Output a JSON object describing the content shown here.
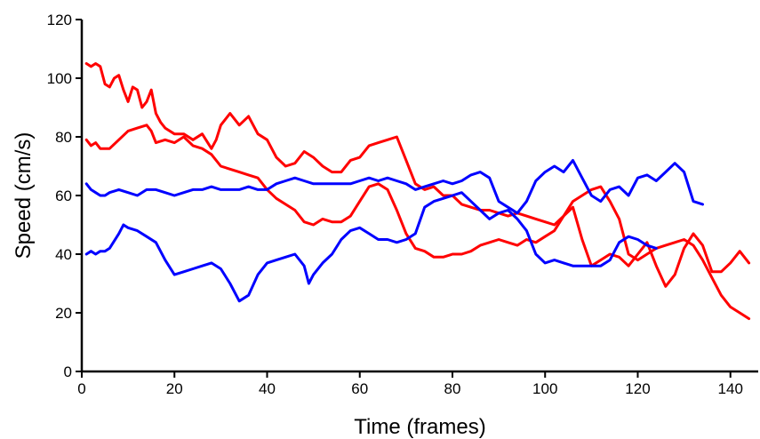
{
  "chart_data": {
    "type": "line",
    "xlabel": "Time (frames)",
    "ylabel": "Speed (cm/s)",
    "xlim": [
      0,
      146
    ],
    "ylim": [
      0,
      120
    ],
    "xticks": [
      0,
      20,
      40,
      60,
      80,
      100,
      120,
      140
    ],
    "yticks": [
      0,
      20,
      40,
      60,
      80,
      100,
      120
    ],
    "xtick_labels": [
      "0",
      "20",
      "40",
      "60",
      "80",
      "100",
      "120",
      "140"
    ],
    "ytick_labels": [
      "0",
      "20",
      "40",
      "60",
      "80",
      "100",
      "120"
    ],
    "grid": false,
    "legend": "none",
    "series": [
      {
        "color": "#ff0000",
        "x": [
          1,
          2,
          3,
          4,
          5,
          6,
          7,
          8,
          9,
          10,
          11,
          12,
          13,
          14,
          15,
          16,
          17,
          18,
          20,
          22,
          24,
          26,
          28,
          29,
          30,
          32,
          34,
          36,
          38,
          40,
          42,
          44,
          46,
          48,
          50,
          52,
          54,
          56,
          58,
          60,
          62,
          64,
          66,
          68,
          70,
          72,
          74,
          76,
          78,
          80,
          82,
          84,
          86,
          88,
          90,
          92,
          94,
          96,
          98,
          100,
          102,
          104,
          106,
          108,
          110,
          112,
          114,
          116,
          118,
          120,
          122,
          124,
          126,
          128,
          130,
          132,
          134,
          136,
          138,
          140,
          142,
          144
        ],
        "y": [
          105,
          104,
          105,
          104,
          98,
          97,
          100,
          101,
          96,
          92,
          97,
          96,
          90,
          92,
          96,
          88,
          85,
          83,
          81,
          81,
          79,
          81,
          76,
          79,
          84,
          88,
          84,
          87,
          81,
          79,
          73,
          70,
          71,
          75,
          73,
          70,
          68,
          68,
          72,
          73,
          77,
          78,
          79,
          80,
          72,
          64,
          62,
          63,
          60,
          60,
          57,
          56,
          55,
          55,
          54,
          53,
          54,
          53,
          52,
          51,
          50,
          53,
          58,
          60,
          62,
          63,
          58,
          52,
          40,
          38,
          40,
          42,
          43,
          44,
          45,
          43,
          38,
          32,
          26,
          22,
          20,
          18
        ],
        "width": 3
      },
      {
        "color": "#ff0000",
        "x": [
          1,
          2,
          3,
          4,
          5,
          6,
          8,
          10,
          12,
          14,
          15,
          16,
          18,
          20,
          22,
          24,
          26,
          28,
          30,
          32,
          34,
          36,
          38,
          40,
          42,
          44,
          46,
          48,
          50,
          52,
          54,
          56,
          58,
          60,
          62,
          64,
          66,
          68,
          70,
          72,
          74,
          76,
          78,
          80,
          82,
          84,
          86,
          88,
          90,
          92,
          94,
          96,
          98,
          100,
          102,
          104,
          106,
          108,
          110,
          112,
          114,
          116,
          118,
          120,
          122,
          124,
          126,
          128,
          130,
          132,
          134,
          136,
          138,
          140,
          142,
          144
        ],
        "y": [
          79,
          77,
          78,
          76,
          76,
          76,
          79,
          82,
          83,
          84,
          82,
          78,
          79,
          78,
          80,
          77,
          76,
          74,
          70,
          69,
          68,
          67,
          66,
          62,
          59,
          57,
          55,
          51,
          50,
          52,
          51,
          51,
          53,
          58,
          63,
          64,
          62,
          55,
          47,
          42,
          41,
          39,
          39,
          40,
          40,
          41,
          43,
          44,
          45,
          44,
          43,
          45,
          44,
          46,
          48,
          53,
          56,
          45,
          36,
          38,
          40,
          39,
          36,
          40,
          44,
          36,
          29,
          33,
          42,
          47,
          43,
          34,
          34,
          37,
          41,
          37
        ],
        "width": 3
      },
      {
        "color": "#0000ff",
        "x": [
          1,
          2,
          3,
          4,
          5,
          6,
          8,
          10,
          12,
          14,
          16,
          18,
          20,
          22,
          24,
          26,
          28,
          30,
          32,
          34,
          36,
          38,
          40,
          42,
          44,
          46,
          48,
          50,
          52,
          54,
          56,
          58,
          60,
          62,
          64,
          66,
          68,
          70,
          72,
          74,
          76,
          78,
          80,
          82,
          84,
          86,
          88,
          90,
          92,
          94,
          96,
          98,
          100,
          102,
          104,
          106,
          108,
          110,
          112,
          114,
          116,
          118,
          120,
          122,
          124,
          126,
          128,
          130,
          132,
          134
        ],
        "y": [
          64,
          62,
          61,
          60,
          60,
          61,
          62,
          61,
          60,
          62,
          62,
          61,
          60,
          61,
          62,
          62,
          63,
          62,
          62,
          62,
          63,
          62,
          62,
          64,
          65,
          66,
          65,
          64,
          64,
          64,
          64,
          64,
          65,
          66,
          65,
          66,
          65,
          64,
          62,
          63,
          64,
          65,
          64,
          65,
          67,
          68,
          66,
          58,
          56,
          54,
          58,
          65,
          68,
          70,
          68,
          72,
          66,
          60,
          58,
          62,
          63,
          60,
          66,
          67,
          65,
          68,
          71,
          68,
          58,
          57
        ],
        "width": 3
      },
      {
        "color": "#0000ff",
        "x": [
          1,
          2,
          3,
          4,
          5,
          6,
          8,
          9,
          10,
          12,
          14,
          16,
          18,
          20,
          22,
          24,
          26,
          28,
          30,
          32,
          34,
          36,
          38,
          40,
          42,
          44,
          46,
          48,
          49,
          50,
          52,
          54,
          56,
          58,
          60,
          62,
          64,
          66,
          68,
          70,
          72,
          74,
          76,
          78,
          80,
          82,
          84,
          86,
          88,
          90,
          92,
          94,
          96,
          98,
          100,
          102,
          104,
          106,
          108,
          110,
          112,
          114,
          116,
          118,
          120,
          122,
          124
        ],
        "y": [
          40,
          41,
          40,
          41,
          41,
          42,
          47,
          50,
          49,
          48,
          46,
          44,
          38,
          33,
          34,
          35,
          36,
          37,
          35,
          30,
          24,
          26,
          33,
          37,
          38,
          39,
          40,
          36,
          30,
          33,
          37,
          40,
          45,
          48,
          49,
          47,
          45,
          45,
          44,
          45,
          47,
          56,
          58,
          59,
          60,
          61,
          58,
          55,
          52,
          54,
          55,
          52,
          48,
          40,
          37,
          38,
          37,
          36,
          36,
          36,
          36,
          38,
          44,
          46,
          45,
          43,
          42
        ],
        "width": 3
      }
    ]
  }
}
